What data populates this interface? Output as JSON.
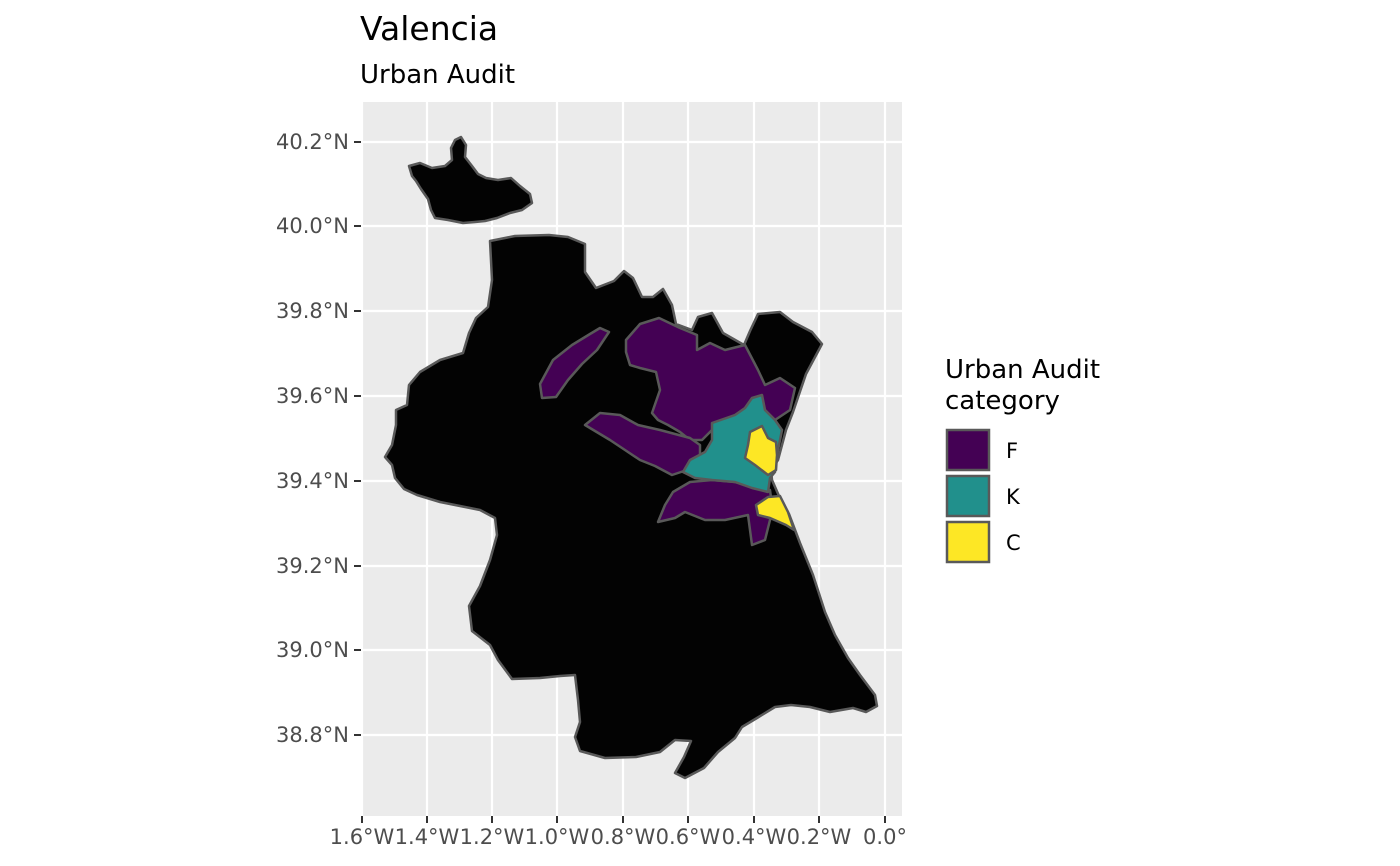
{
  "map": {
    "title": "Valencia",
    "subtitle": "Urban Audit",
    "x_axis": {
      "labels": [
        "1.6°W",
        "1.4°W",
        "1.2°W",
        "1.0°W",
        "0.8°W",
        "0.6°W",
        "0.4°W",
        "0.2°W",
        "0.0°"
      ]
    },
    "y_axis": {
      "labels": [
        "40.2°N",
        "40.0°N",
        "39.8°N",
        "39.6°N",
        "39.4°N",
        "39.2°N",
        "39.0°N",
        "38.8°N"
      ]
    },
    "legend": {
      "title_line1": "Urban Audit",
      "title_line2": "category",
      "items": [
        {
          "label": "F",
          "color": "#440154"
        },
        {
          "label": "K",
          "color": "#21908c"
        },
        {
          "label": "C",
          "color": "#fde725"
        }
      ]
    },
    "colors": {
      "background": "#ebebeb",
      "outside_region": "#030303",
      "border": "#595959",
      "F": "#440154",
      "K": "#21908c",
      "C": "#fde725"
    }
  }
}
